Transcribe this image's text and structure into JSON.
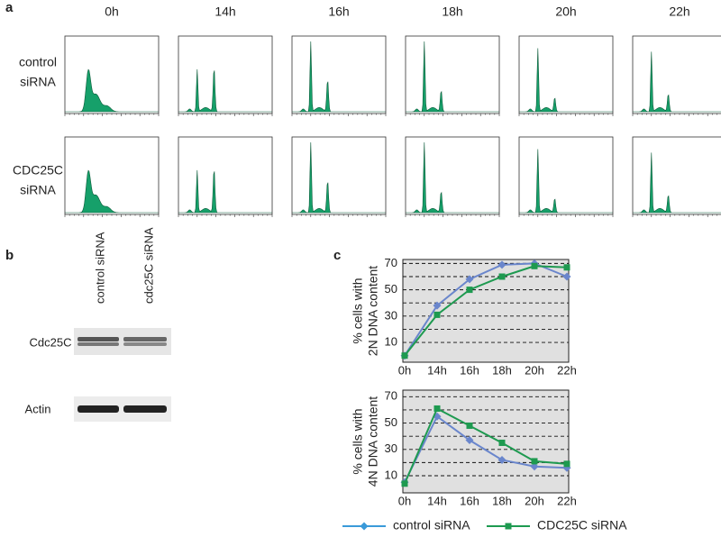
{
  "panel_a": {
    "label": "a",
    "timepoints": [
      "0h",
      "14h",
      "16h",
      "18h",
      "20h",
      "22h"
    ],
    "rows": [
      [
        "control",
        "siRNA"
      ],
      [
        "CDC25C",
        "siRNA"
      ]
    ]
  },
  "panel_b": {
    "label": "b",
    "lanes": [
      "control siRNA",
      "cdc25C siRNA"
    ],
    "blots": [
      "Cdc25C",
      "Actin"
    ]
  },
  "panel_c": {
    "label": "c"
  },
  "chart_data": [
    {
      "type": "line",
      "ylabel": [
        "% cells with",
        "2N DNA content"
      ],
      "categories": [
        "0h",
        "14h",
        "16h",
        "18h",
        "20h",
        "22h"
      ],
      "ylim": [
        -5,
        73
      ],
      "yticks": [
        10,
        30,
        50,
        70
      ],
      "minor_grid": [
        20,
        40,
        60
      ],
      "grid": true,
      "series": [
        {
          "name": "control siRNA",
          "color": "#6a86cc",
          "marker": "diamond",
          "values": [
            0,
            38,
            58,
            69,
            70,
            60
          ]
        },
        {
          "name": "CDC25C siRNA",
          "color": "#1e9a50",
          "marker": "square",
          "values": [
            0,
            31,
            50,
            60,
            68,
            67
          ]
        }
      ]
    },
    {
      "type": "line",
      "ylabel": [
        "% cells with",
        "4N DNA content"
      ],
      "categories": [
        "0h",
        "14h",
        "16h",
        "18h",
        "20h",
        "22h"
      ],
      "ylim": [
        -3,
        75
      ],
      "yticks": [
        10,
        30,
        50,
        70
      ],
      "minor_grid": [
        20,
        40,
        60
      ],
      "grid": true,
      "series": [
        {
          "name": "control siRNA",
          "color": "#6a86cc",
          "marker": "diamond",
          "values": [
            5,
            55,
            37,
            22,
            17,
            16
          ]
        },
        {
          "name": "CDC25C siRNA",
          "color": "#1e9a50",
          "marker": "square",
          "values": [
            4,
            61,
            48,
            35,
            21,
            19
          ]
        }
      ]
    }
  ]
}
